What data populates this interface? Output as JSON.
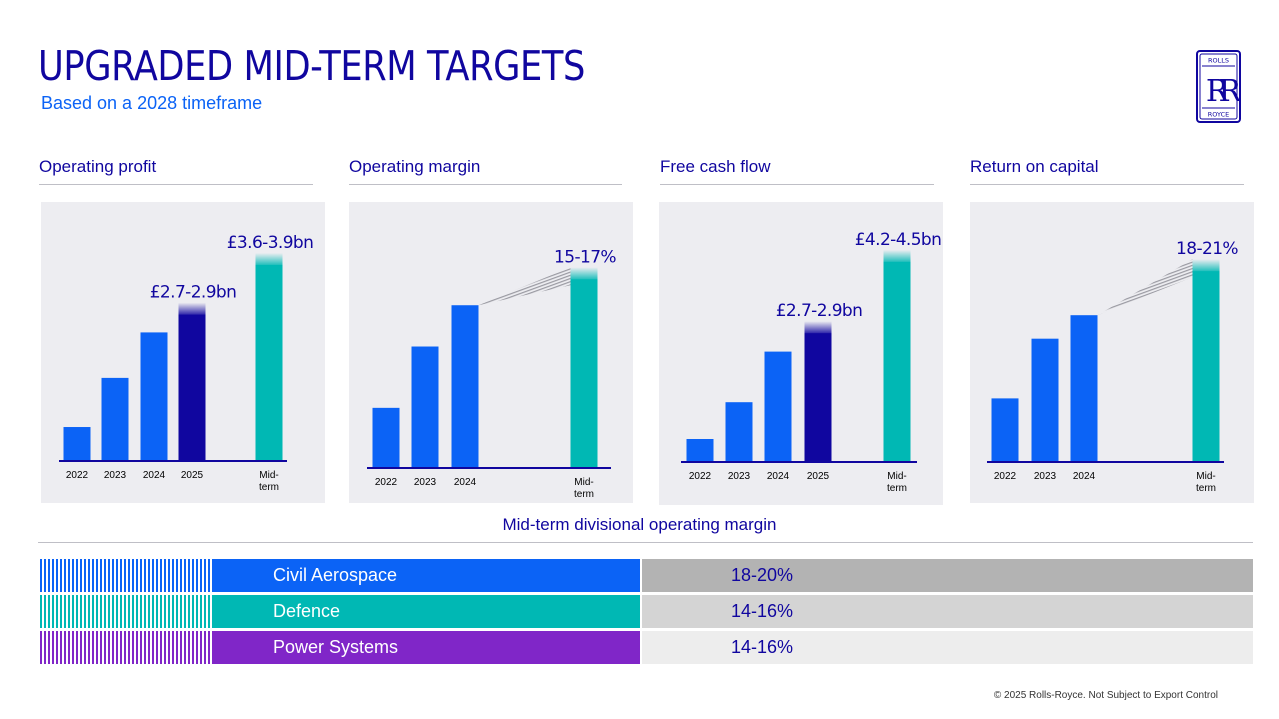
{
  "header": {
    "title": "UPGRADED MID-TERM TARGETS",
    "subtitle": "Based on a 2028 timeframe"
  },
  "logo": {
    "top_text": "ROLLS",
    "monogram": "RR",
    "bottom_text": "ROYCE"
  },
  "colors": {
    "navy": "#10069f",
    "blue": "#0b63f6",
    "teal": "#00b8b4",
    "purple": "#8026c8",
    "panel_bg": "#ededf1"
  },
  "chart_data": [
    {
      "type": "bar",
      "title": "Operating profit",
      "categories": [
        "2022",
        "2023",
        "2024",
        "2025",
        "Mid-term"
      ],
      "values": [
        0.65,
        1.59,
        2.46,
        2.8,
        3.75
      ],
      "value_labels": [
        "",
        "",
        "",
        "£2.7-2.9bn",
        "£3.6-3.9bn"
      ],
      "ylim": [
        0,
        4.4
      ],
      "trend_arrow": false
    },
    {
      "type": "bar",
      "title": "Operating margin",
      "categories": [
        "2022",
        "2023",
        "2024",
        "Mid-term"
      ],
      "values": [
        5.1,
        10.3,
        13.8,
        16
      ],
      "value_labels": [
        "",
        "",
        "",
        "15-17%"
      ],
      "ylim": [
        0,
        19.5
      ],
      "trend_arrow": true
    },
    {
      "type": "bar",
      "title": "Free cash flow",
      "categories": [
        "2022",
        "2023",
        "2024",
        "2025",
        "Mid-term"
      ],
      "values": [
        0.5,
        1.3,
        2.4,
        2.8,
        4.35
      ],
      "value_labels": [
        "",
        "",
        "",
        "£2.7-2.9bn",
        "£4.2-4.5bn"
      ],
      "ylim": [
        0,
        5.0
      ],
      "trend_arrow": false
    },
    {
      "type": "bar",
      "title": "Return on capital",
      "categories": [
        "2022",
        "2023",
        "2024",
        "Mid-term"
      ],
      "values": [
        6.5,
        12.6,
        15.0,
        19.5
      ],
      "value_labels": [
        "",
        "",
        "",
        "18-21%"
      ],
      "ylim": [
        0,
        23.5
      ],
      "trend_arrow": true
    }
  ],
  "divisions": {
    "title": "Mid-term divisional operating margin",
    "rows": [
      {
        "name": "Civil Aerospace",
        "value": "18-20%",
        "color": "#0b63f6",
        "value_bg": "#b3b3b3"
      },
      {
        "name": "Defence",
        "value": "14-16%",
        "color": "#00b8b4",
        "value_bg": "#d4d4d4"
      },
      {
        "name": "Power Systems",
        "value": "14-16%",
        "color": "#8026c8",
        "value_bg": "#ededed"
      }
    ]
  },
  "footer": "© 2025 Rolls-Royce. Not Subject to Export Control"
}
